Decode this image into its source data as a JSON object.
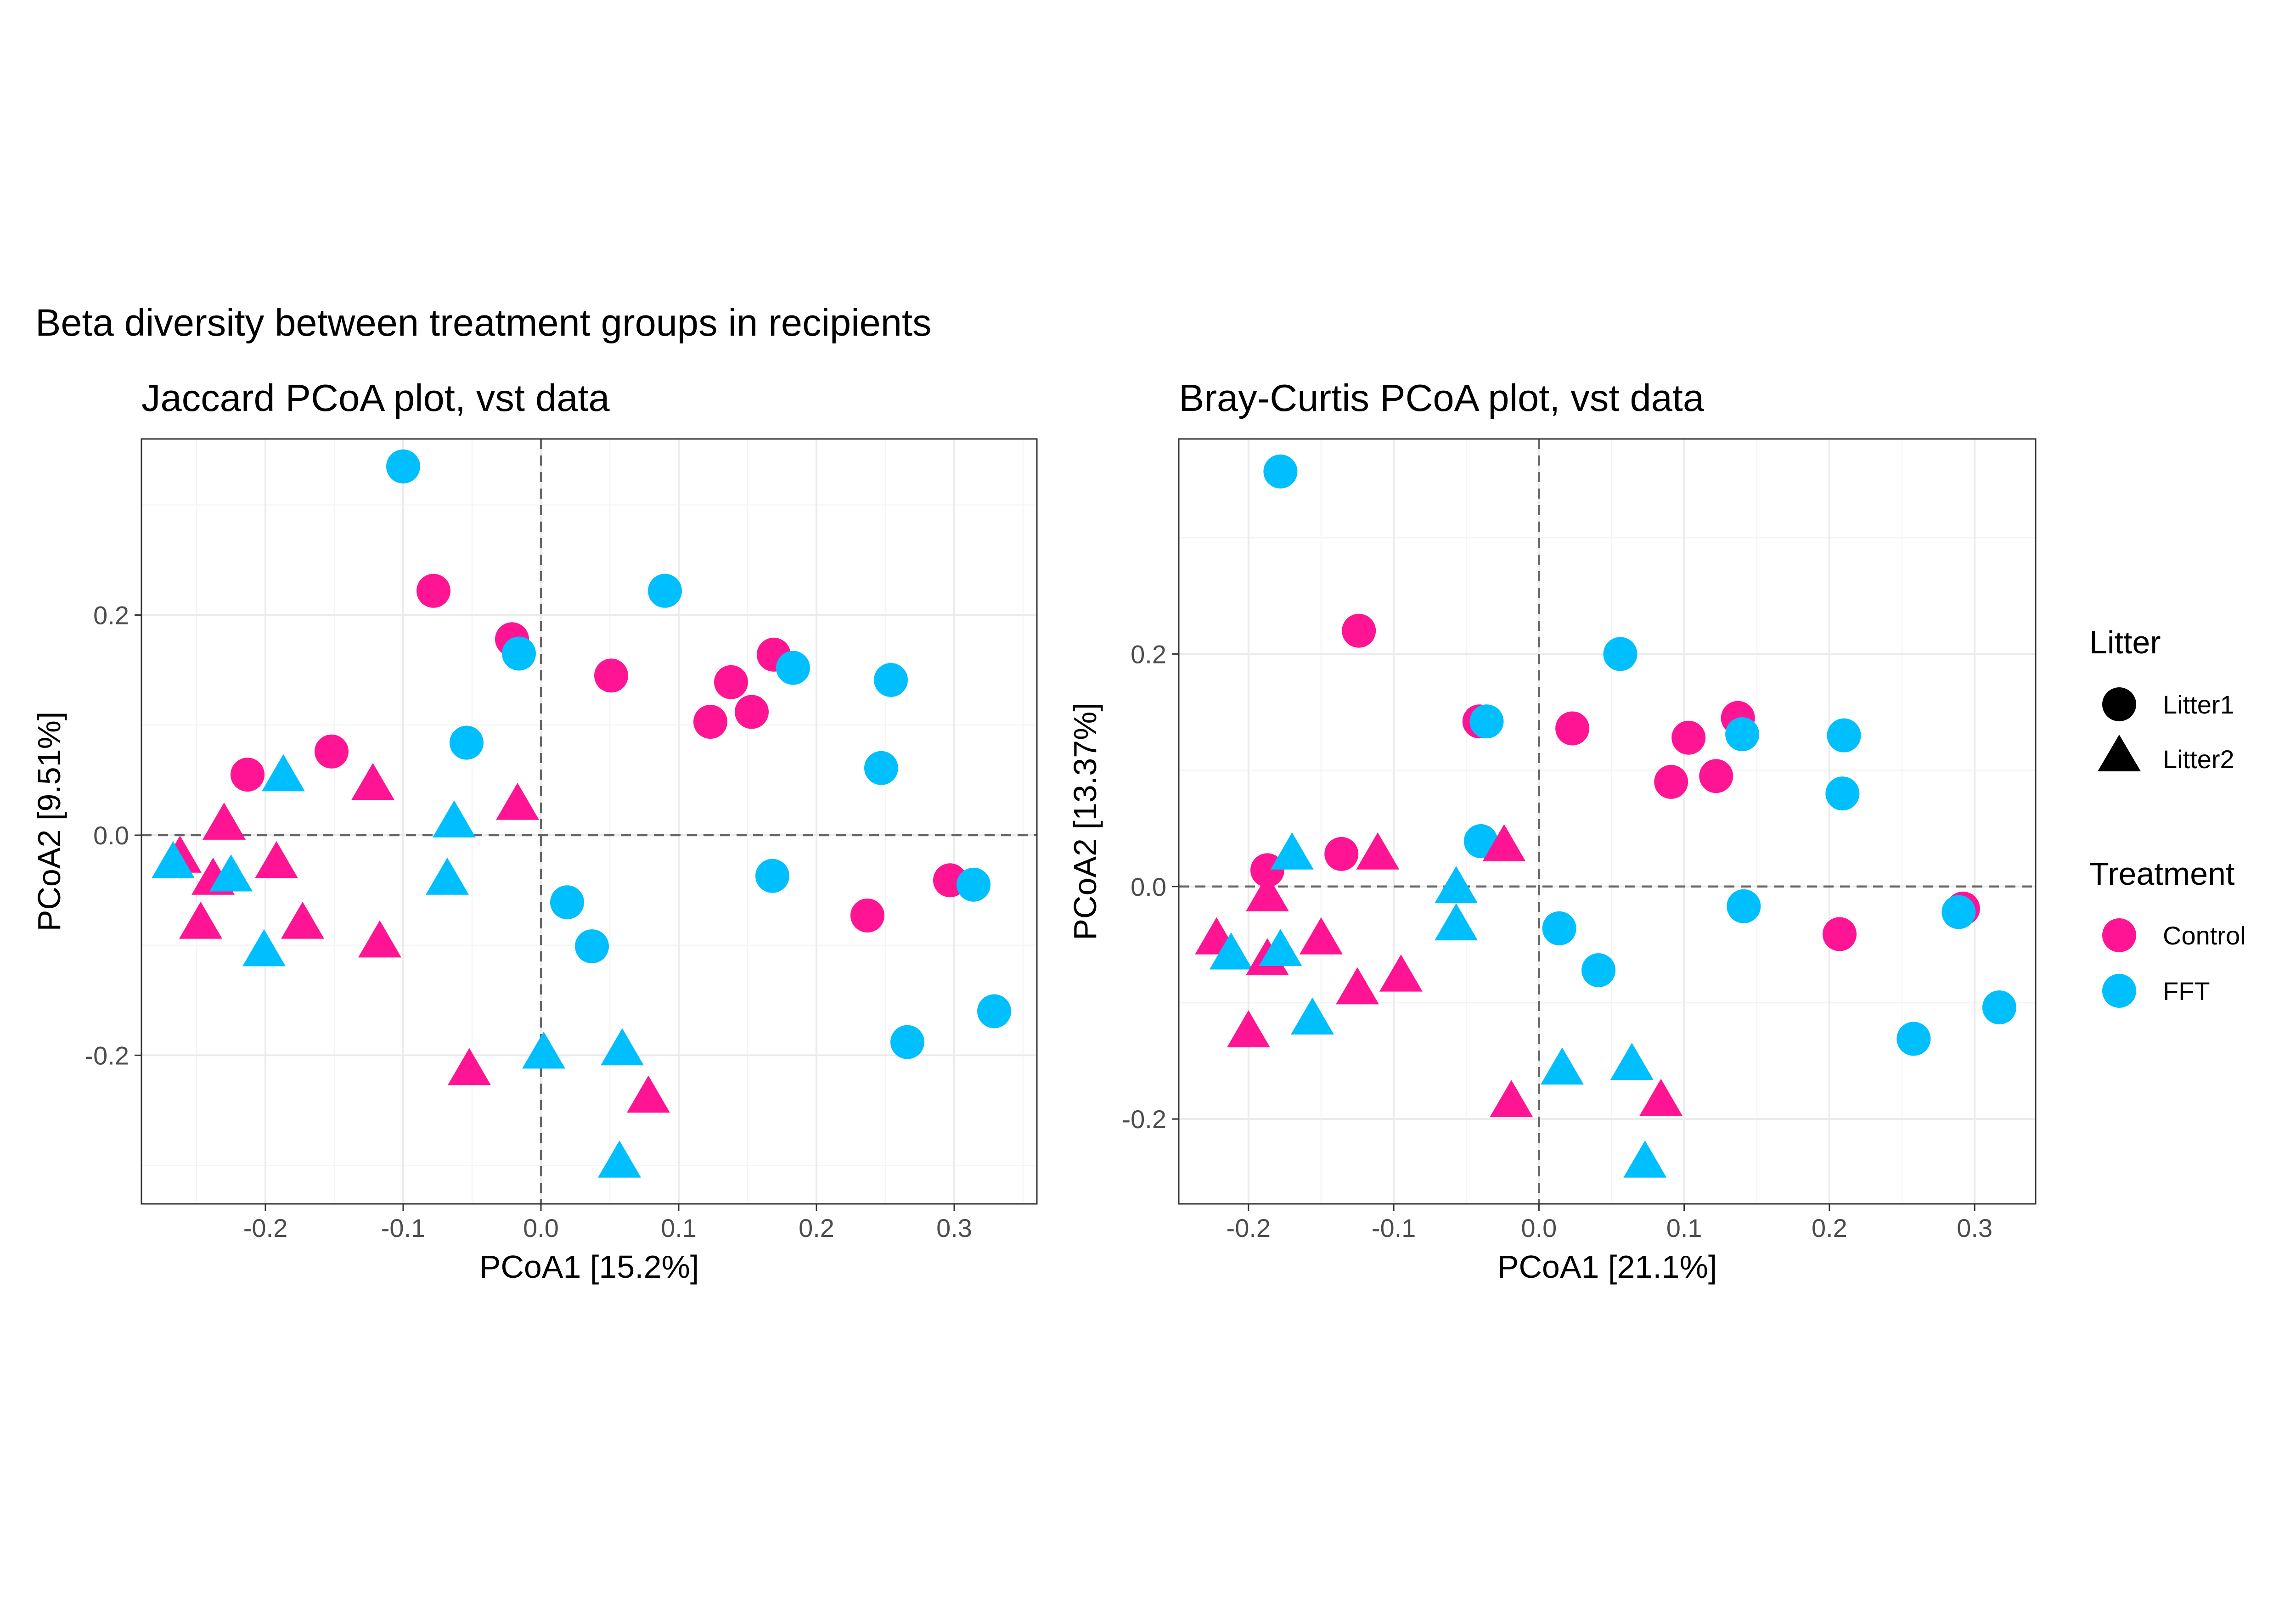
{
  "figure_title": "Beta diversity between treatment groups in recipients",
  "colors": {
    "Control": "#ff1493",
    "FFT": "#00bfff",
    "legend_shape": "#000000"
  },
  "legend": {
    "litter_title": "Litter",
    "litter_items": [
      {
        "label": "Litter1",
        "shape": "circle"
      },
      {
        "label": "Litter2",
        "shape": "triangle"
      }
    ],
    "treatment_title": "Treatment",
    "treatment_items": [
      {
        "label": "Control",
        "color": "#ff1493"
      },
      {
        "label": "FFT",
        "color": "#00bfff"
      }
    ]
  },
  "chart_data": [
    {
      "type": "scatter",
      "title": "Jaccard PCoA plot, vst data",
      "xlabel": "PCoA1 [15.2%]",
      "ylabel": "PCoA2 [9.51%]",
      "xlim": [
        -0.29,
        0.36
      ],
      "ylim": [
        -0.335,
        0.36
      ],
      "xticks": [
        -0.2,
        -0.1,
        0.0,
        0.1,
        0.2,
        0.3
      ],
      "xtick_labels": [
        "-0.2",
        "-0.1",
        "0.0",
        "0.1",
        "0.2",
        "0.3"
      ],
      "yticks": [
        -0.2,
        0.0,
        0.2
      ],
      "ytick_labels": [
        "-0.2",
        "0.0",
        "0.2"
      ],
      "grid": true,
      "reference_lines": {
        "x": 0,
        "y": 0
      },
      "points": [
        {
          "x": -0.1,
          "y": 0.335,
          "treatment": "FFT",
          "litter": "Litter1"
        },
        {
          "x": -0.078,
          "y": 0.222,
          "treatment": "Control",
          "litter": "Litter1"
        },
        {
          "x": 0.09,
          "y": 0.222,
          "treatment": "FFT",
          "litter": "Litter1"
        },
        {
          "x": -0.021,
          "y": 0.178,
          "treatment": "Control",
          "litter": "Litter1"
        },
        {
          "x": -0.016,
          "y": 0.165,
          "treatment": "FFT",
          "litter": "Litter1"
        },
        {
          "x": 0.051,
          "y": 0.145,
          "treatment": "Control",
          "litter": "Litter1"
        },
        {
          "x": 0.169,
          "y": 0.164,
          "treatment": "Control",
          "litter": "Litter1"
        },
        {
          "x": 0.183,
          "y": 0.152,
          "treatment": "FFT",
          "litter": "Litter1"
        },
        {
          "x": 0.138,
          "y": 0.139,
          "treatment": "Control",
          "litter": "Litter1"
        },
        {
          "x": 0.254,
          "y": 0.141,
          "treatment": "FFT",
          "litter": "Litter1"
        },
        {
          "x": 0.153,
          "y": 0.112,
          "treatment": "Control",
          "litter": "Litter1"
        },
        {
          "x": 0.123,
          "y": 0.103,
          "treatment": "Control",
          "litter": "Litter1"
        },
        {
          "x": -0.054,
          "y": 0.084,
          "treatment": "FFT",
          "litter": "Litter1"
        },
        {
          "x": -0.152,
          "y": 0.076,
          "treatment": "Control",
          "litter": "Litter1"
        },
        {
          "x": 0.247,
          "y": 0.061,
          "treatment": "FFT",
          "litter": "Litter1"
        },
        {
          "x": -0.213,
          "y": 0.055,
          "treatment": "Control",
          "litter": "Litter1"
        },
        {
          "x": 0.168,
          "y": -0.037,
          "treatment": "FFT",
          "litter": "Litter1"
        },
        {
          "x": 0.297,
          "y": -0.041,
          "treatment": "Control",
          "litter": "Litter1"
        },
        {
          "x": 0.314,
          "y": -0.045,
          "treatment": "FFT",
          "litter": "Litter1"
        },
        {
          "x": 0.019,
          "y": -0.061,
          "treatment": "FFT",
          "litter": "Litter1"
        },
        {
          "x": 0.237,
          "y": -0.073,
          "treatment": "Control",
          "litter": "Litter1"
        },
        {
          "x": 0.037,
          "y": -0.101,
          "treatment": "FFT",
          "litter": "Litter1"
        },
        {
          "x": 0.329,
          "y": -0.16,
          "treatment": "FFT",
          "litter": "Litter1"
        },
        {
          "x": 0.266,
          "y": -0.188,
          "treatment": "FFT",
          "litter": "Litter1"
        },
        {
          "x": -0.187,
          "y": 0.054,
          "treatment": "FFT",
          "litter": "Litter2"
        },
        {
          "x": -0.122,
          "y": 0.046,
          "treatment": "Control",
          "litter": "Litter2"
        },
        {
          "x": -0.017,
          "y": 0.028,
          "treatment": "Control",
          "litter": "Litter2"
        },
        {
          "x": -0.063,
          "y": 0.012,
          "treatment": "FFT",
          "litter": "Litter2"
        },
        {
          "x": -0.23,
          "y": 0.01,
          "treatment": "Control",
          "litter": "Litter2"
        },
        {
          "x": -0.262,
          "y": -0.02,
          "treatment": "Control",
          "litter": "Litter2"
        },
        {
          "x": -0.267,
          "y": -0.025,
          "treatment": "FFT",
          "litter": "Litter2"
        },
        {
          "x": -0.192,
          "y": -0.025,
          "treatment": "Control",
          "litter": "Litter2"
        },
        {
          "x": -0.238,
          "y": -0.04,
          "treatment": "Control",
          "litter": "Litter2"
        },
        {
          "x": -0.225,
          "y": -0.037,
          "treatment": "FFT",
          "litter": "Litter2"
        },
        {
          "x": -0.068,
          "y": -0.04,
          "treatment": "FFT",
          "litter": "Litter2"
        },
        {
          "x": -0.247,
          "y": -0.08,
          "treatment": "Control",
          "litter": "Litter2"
        },
        {
          "x": -0.173,
          "y": -0.08,
          "treatment": "Control",
          "litter": "Litter2"
        },
        {
          "x": -0.117,
          "y": -0.097,
          "treatment": "Control",
          "litter": "Litter2"
        },
        {
          "x": -0.201,
          "y": -0.105,
          "treatment": "FFT",
          "litter": "Litter2"
        },
        {
          "x": 0.002,
          "y": -0.198,
          "treatment": "FFT",
          "litter": "Litter2"
        },
        {
          "x": 0.059,
          "y": -0.195,
          "treatment": "FFT",
          "litter": "Litter2"
        },
        {
          "x": -0.052,
          "y": -0.213,
          "treatment": "Control",
          "litter": "Litter2"
        },
        {
          "x": 0.078,
          "y": -0.238,
          "treatment": "Control",
          "litter": "Litter2"
        },
        {
          "x": 0.057,
          "y": -0.297,
          "treatment": "FFT",
          "litter": "Litter2"
        }
      ]
    },
    {
      "type": "scatter",
      "title": "Bray-Curtis PCoA plot, vst data",
      "xlabel": "PCoA1 [21.1%]",
      "ylabel": "PCoA2 [13.37%]",
      "xlim": [
        -0.248,
        0.342
      ],
      "ylim": [
        -0.273,
        0.385
      ],
      "xticks": [
        -0.2,
        -0.1,
        0.0,
        0.1,
        0.2,
        0.3
      ],
      "xtick_labels": [
        "-0.2",
        "-0.1",
        "0.0",
        "0.1",
        "0.2",
        "0.3"
      ],
      "yticks": [
        -0.2,
        0.0,
        0.2
      ],
      "ytick_labels": [
        "-0.2",
        "0.0",
        "0.2"
      ],
      "grid": true,
      "reference_lines": {
        "x": 0,
        "y": 0
      },
      "points": [
        {
          "x": -0.178,
          "y": 0.357,
          "treatment": "FFT",
          "litter": "Litter1"
        },
        {
          "x": -0.124,
          "y": 0.22,
          "treatment": "Control",
          "litter": "Litter1"
        },
        {
          "x": 0.056,
          "y": 0.2,
          "treatment": "FFT",
          "litter": "Litter1"
        },
        {
          "x": -0.041,
          "y": 0.142,
          "treatment": "Control",
          "litter": "Litter1"
        },
        {
          "x": -0.036,
          "y": 0.142,
          "treatment": "FFT",
          "litter": "Litter1"
        },
        {
          "x": 0.023,
          "y": 0.136,
          "treatment": "Control",
          "litter": "Litter1"
        },
        {
          "x": 0.137,
          "y": 0.145,
          "treatment": "Control",
          "litter": "Litter1"
        },
        {
          "x": 0.14,
          "y": 0.131,
          "treatment": "FFT",
          "litter": "Litter1"
        },
        {
          "x": 0.103,
          "y": 0.128,
          "treatment": "Control",
          "litter": "Litter1"
        },
        {
          "x": 0.21,
          "y": 0.13,
          "treatment": "FFT",
          "litter": "Litter1"
        },
        {
          "x": 0.091,
          "y": 0.09,
          "treatment": "Control",
          "litter": "Litter1"
        },
        {
          "x": 0.122,
          "y": 0.095,
          "treatment": "Control",
          "litter": "Litter1"
        },
        {
          "x": 0.209,
          "y": 0.08,
          "treatment": "FFT",
          "litter": "Litter1"
        },
        {
          "x": -0.04,
          "y": 0.039,
          "treatment": "FFT",
          "litter": "Litter1"
        },
        {
          "x": -0.136,
          "y": 0.028,
          "treatment": "Control",
          "litter": "Litter1"
        },
        {
          "x": -0.187,
          "y": 0.014,
          "treatment": "Control",
          "litter": "Litter1"
        },
        {
          "x": 0.141,
          "y": -0.017,
          "treatment": "FFT",
          "litter": "Litter1"
        },
        {
          "x": 0.292,
          "y": -0.019,
          "treatment": "Control",
          "litter": "Litter1"
        },
        {
          "x": 0.289,
          "y": -0.022,
          "treatment": "FFT",
          "litter": "Litter1"
        },
        {
          "x": 0.014,
          "y": -0.036,
          "treatment": "FFT",
          "litter": "Litter1"
        },
        {
          "x": 0.207,
          "y": -0.041,
          "treatment": "Control",
          "litter": "Litter1"
        },
        {
          "x": 0.041,
          "y": -0.072,
          "treatment": "FFT",
          "litter": "Litter1"
        },
        {
          "x": 0.317,
          "y": -0.104,
          "treatment": "FFT",
          "litter": "Litter1"
        },
        {
          "x": 0.258,
          "y": -0.131,
          "treatment": "FFT",
          "litter": "Litter1"
        },
        {
          "x": -0.17,
          "y": 0.028,
          "treatment": "FFT",
          "litter": "Litter2"
        },
        {
          "x": -0.111,
          "y": 0.028,
          "treatment": "Control",
          "litter": "Litter2"
        },
        {
          "x": -0.024,
          "y": 0.035,
          "treatment": "Control",
          "litter": "Litter2"
        },
        {
          "x": -0.057,
          "y": -0.001,
          "treatment": "FFT",
          "litter": "Litter2"
        },
        {
          "x": -0.187,
          "y": -0.008,
          "treatment": "Control",
          "litter": "Litter2"
        },
        {
          "x": -0.057,
          "y": -0.033,
          "treatment": "FFT",
          "litter": "Litter2"
        },
        {
          "x": -0.222,
          "y": -0.045,
          "treatment": "Control",
          "litter": "Litter2"
        },
        {
          "x": -0.212,
          "y": -0.058,
          "treatment": "FFT",
          "litter": "Litter2"
        },
        {
          "x": -0.187,
          "y": -0.063,
          "treatment": "Control",
          "litter": "Litter2"
        },
        {
          "x": -0.178,
          "y": -0.055,
          "treatment": "FFT",
          "litter": "Litter2"
        },
        {
          "x": -0.15,
          "y": -0.045,
          "treatment": "Control",
          "litter": "Litter2"
        },
        {
          "x": -0.125,
          "y": -0.088,
          "treatment": "Control",
          "litter": "Litter2"
        },
        {
          "x": -0.095,
          "y": -0.077,
          "treatment": "Control",
          "litter": "Litter2"
        },
        {
          "x": -0.156,
          "y": -0.114,
          "treatment": "FFT",
          "litter": "Litter2"
        },
        {
          "x": -0.2,
          "y": -0.125,
          "treatment": "Control",
          "litter": "Litter2"
        },
        {
          "x": 0.016,
          "y": -0.157,
          "treatment": "FFT",
          "litter": "Litter2"
        },
        {
          "x": 0.064,
          "y": -0.153,
          "treatment": "FFT",
          "litter": "Litter2"
        },
        {
          "x": -0.019,
          "y": -0.185,
          "treatment": "Control",
          "litter": "Litter2"
        },
        {
          "x": 0.084,
          "y": -0.184,
          "treatment": "Control",
          "litter": "Litter2"
        },
        {
          "x": 0.073,
          "y": -0.237,
          "treatment": "FFT",
          "litter": "Litter2"
        }
      ]
    }
  ]
}
